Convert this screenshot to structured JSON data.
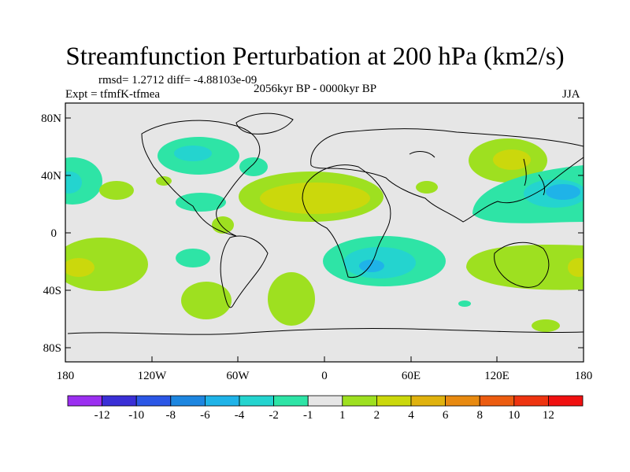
{
  "title": "Streamfunction Perturbation at 200 hPa (km2/s)",
  "stats": "rmsd= 1.2712 diff= -4.88103e-09",
  "experiment": "Expt = tfmfK-tfmea",
  "period": "2056kyr BP - 0000kyr BP",
  "season": "JJA",
  "axes": {
    "lat_labels": [
      "80N",
      "40N",
      "0",
      "40S",
      "80S"
    ],
    "lon_labels": [
      "180",
      "120W",
      "60W",
      "0",
      "60E",
      "120E",
      "180"
    ]
  },
  "colorbar": {
    "colors": [
      "#9b2ff0",
      "#3a2fd6",
      "#2b57e6",
      "#1d86e0",
      "#1fb3e8",
      "#24d4cf",
      "#2ee4a6",
      "#e6e6e6",
      "#9ee020",
      "#cbd80c",
      "#e0b20e",
      "#e88a10",
      "#ec5c10",
      "#ee3410",
      "#f01010"
    ],
    "labels": [
      "-12",
      "-10",
      "-8",
      "-6",
      "-4",
      "-2",
      "-1",
      "1",
      "2",
      "4",
      "6",
      "8",
      "10",
      "12"
    ]
  }
}
